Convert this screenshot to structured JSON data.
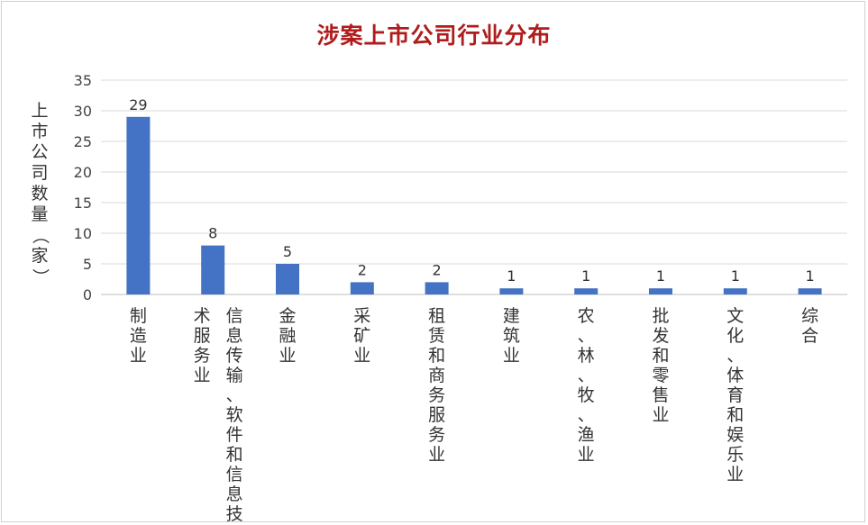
{
  "chart_data": {
    "type": "bar",
    "title": "涉案上市公司行业分布",
    "ylabel": "上市公司数量（家）",
    "xlabel": "",
    "categories": [
      "制造业",
      "信息传输、软件和信息技术服务业",
      "金融业",
      "采矿业",
      "租赁和商务服务业",
      "建筑业",
      "农、林、牧、渔业",
      "批发和零售业",
      "文化、体育和娱乐业",
      "综合"
    ],
    "category_columns": [
      [
        "制造业"
      ],
      [
        "信息传输、软件和信息技",
        "术服务业"
      ],
      [
        "金融业"
      ],
      [
        "采矿业"
      ],
      [
        "租赁和商务服务业"
      ],
      [
        "建筑业"
      ],
      [
        "农、林、牧、渔业"
      ],
      [
        "批发和零售业"
      ],
      [
        "文化、体育和娱乐业"
      ],
      [
        "综合"
      ]
    ],
    "values": [
      29,
      8,
      5,
      2,
      2,
      1,
      1,
      1,
      1,
      1
    ],
    "data_labels": [
      "29",
      "8",
      "5",
      "2",
      "2",
      "1",
      "1",
      "1",
      "1",
      "1"
    ],
    "ylim": [
      0,
      35
    ],
    "yticks": [
      0,
      5,
      10,
      15,
      20,
      25,
      30,
      35
    ],
    "grid": true,
    "legend": "none",
    "bar_color": "#4472c4"
  }
}
